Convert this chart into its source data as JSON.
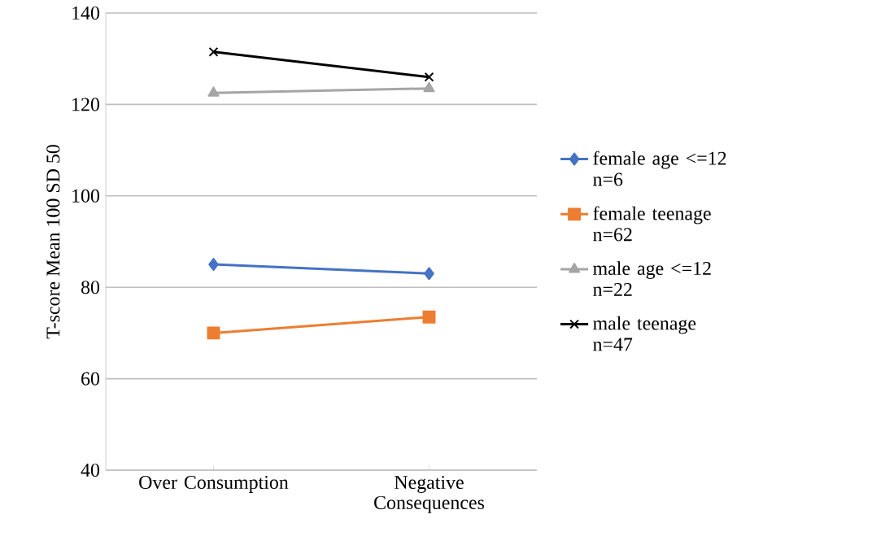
{
  "chart_data": {
    "type": "line",
    "ylabel": "T-score Mean 100 SD 50",
    "categories": [
      "Over Consumption",
      "Negative Consequences"
    ],
    "series": [
      {
        "name": "female age <=12 n=6",
        "color": "#4472c4",
        "marker": "diamond",
        "values": [
          85,
          83
        ]
      },
      {
        "name": "female teenage n=62",
        "color": "#ed7d31",
        "marker": "square",
        "values": [
          70,
          73.5
        ]
      },
      {
        "name": "male age <=12 n=22",
        "color": "#a5a5a5",
        "marker": "triangle",
        "values": [
          122.5,
          123.5
        ]
      },
      {
        "name": "male teenage n=47",
        "color": "#000000",
        "marker": "cross",
        "values": [
          131.5,
          126
        ]
      }
    ],
    "ylim": [
      40,
      140
    ],
    "yticks": [
      40,
      60,
      80,
      100,
      120,
      140
    ],
    "grid": "y",
    "legend": "right"
  }
}
